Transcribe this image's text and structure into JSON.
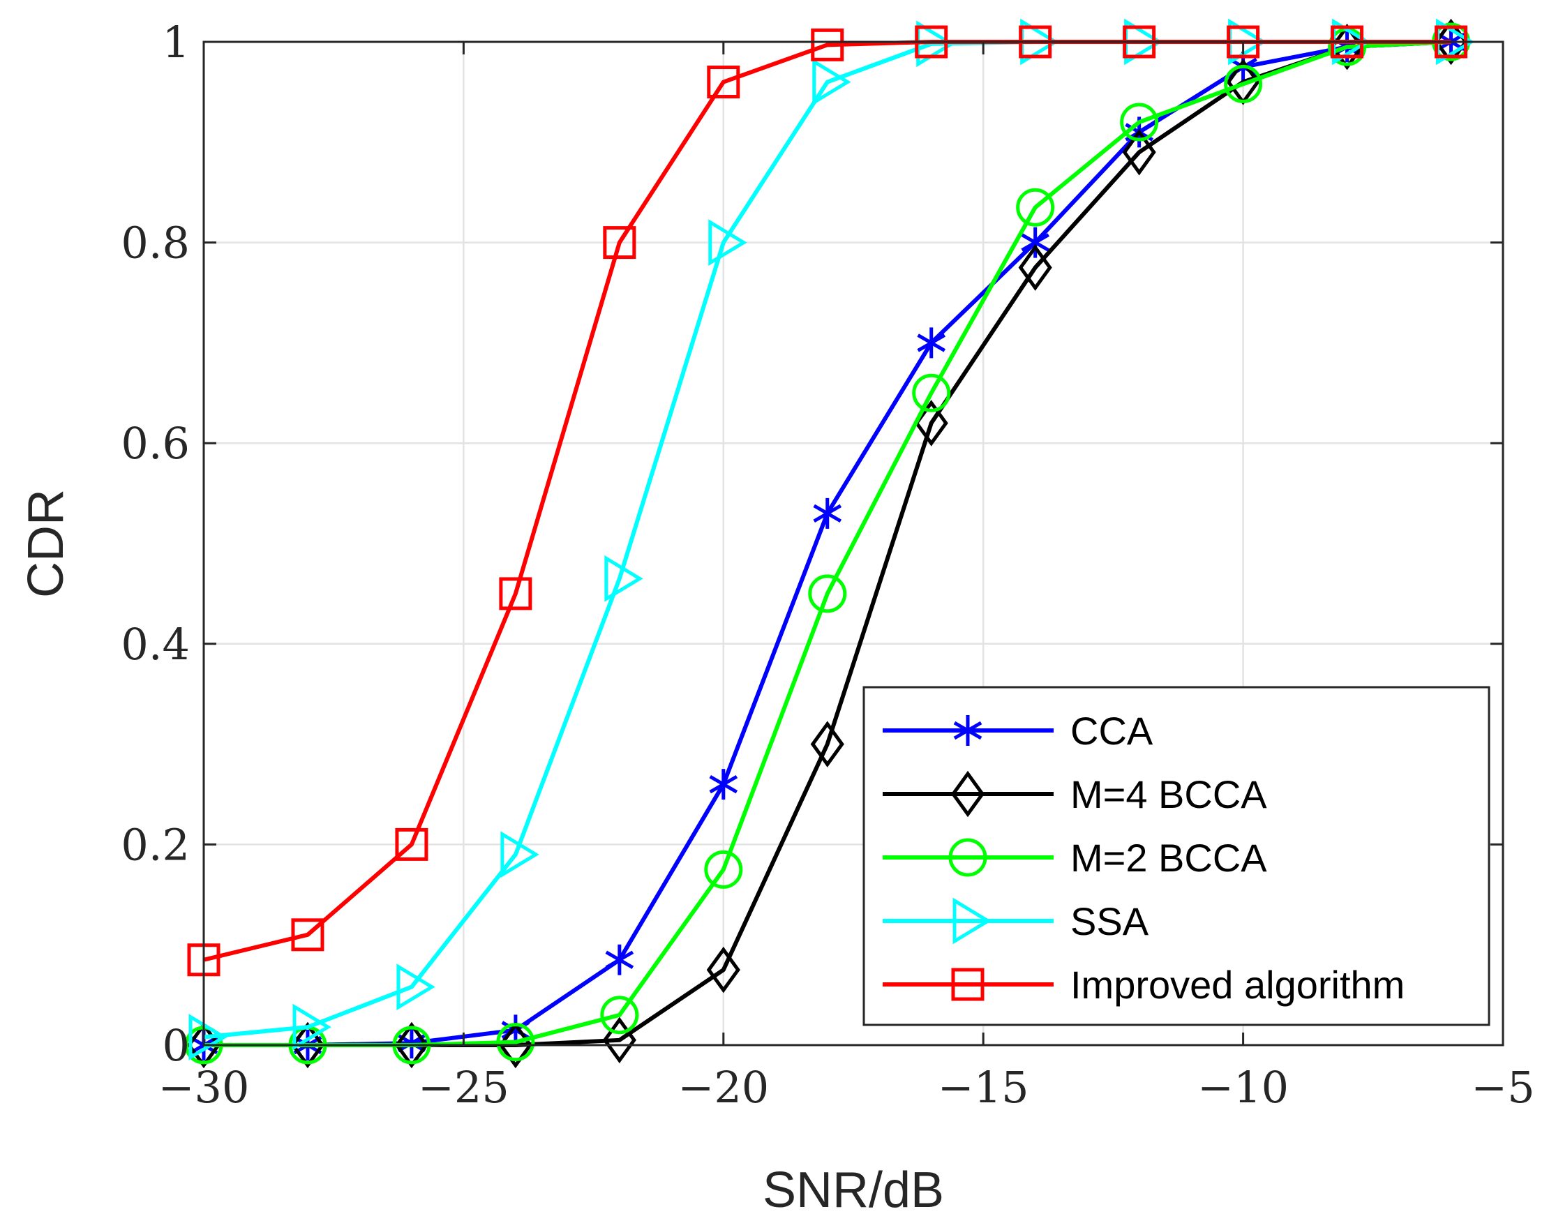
{
  "chart_data": {
    "type": "line",
    "title": "",
    "xlabel": "SNR/dB",
    "ylabel": "CDR",
    "xlim": [
      -30,
      -5
    ],
    "ylim": [
      0,
      1
    ],
    "xticks": [
      -30,
      -25,
      -20,
      -15,
      -10,
      -5
    ],
    "xtick_labels": [
      "−30",
      "−25",
      "−20",
      "−15",
      "−10",
      "−5"
    ],
    "yticks": [
      0,
      0.2,
      0.4,
      0.6,
      0.8,
      1
    ],
    "ytick_labels": [
      "0",
      "0.2",
      "0.4",
      "0.6",
      "0.8",
      "1"
    ],
    "grid": true,
    "legend_position": "bottom-right",
    "x": [
      -30,
      -28,
      -26,
      -24,
      -22,
      -20,
      -18,
      -16,
      -14,
      -12,
      -10,
      -8,
      -6
    ],
    "series": [
      {
        "name": "CCA",
        "color": "#0000ff",
        "marker": "asterisk",
        "values": [
          0.0,
          0.0,
          0.002,
          0.015,
          0.085,
          0.26,
          0.53,
          0.7,
          0.8,
          0.91,
          0.975,
          0.995,
          1.0
        ]
      },
      {
        "name": "M=4 BCCA",
        "color": "#000000",
        "marker": "diamond",
        "values": [
          0.0,
          0.0,
          0.0,
          0.0,
          0.005,
          0.075,
          0.3,
          0.62,
          0.775,
          0.89,
          0.96,
          0.995,
          1.0
        ]
      },
      {
        "name": "M=2 BCCA",
        "color": "#00ff00",
        "marker": "circle",
        "values": [
          0.0,
          0.0,
          0.0,
          0.003,
          0.03,
          0.175,
          0.45,
          0.65,
          0.835,
          0.92,
          0.958,
          0.995,
          1.0
        ]
      },
      {
        "name": "SSA",
        "color": "#00ffff",
        "marker": "triangle-right",
        "values": [
          0.008,
          0.018,
          0.058,
          0.19,
          0.465,
          0.8,
          0.96,
          0.998,
          1.0,
          1.0,
          1.0,
          1.0,
          1.0
        ]
      },
      {
        "name": "Improved algorithm",
        "color": "#ff0000",
        "marker": "square",
        "values": [
          0.085,
          0.11,
          0.2,
          0.45,
          0.8,
          0.96,
          0.997,
          1.0,
          1.0,
          1.0,
          1.0,
          1.0,
          1.0
        ]
      }
    ]
  }
}
